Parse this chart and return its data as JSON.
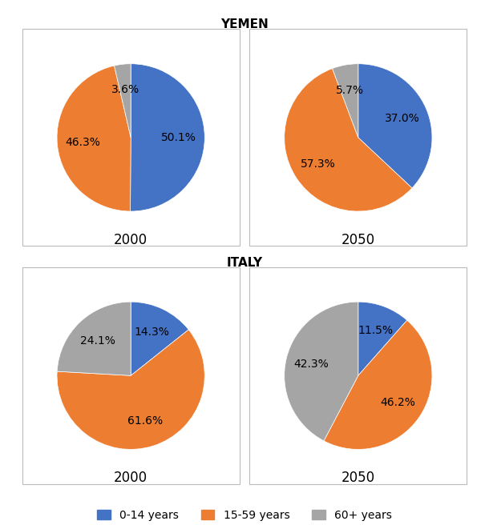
{
  "title_yemen": "YEMEN",
  "title_italy": "ITALY",
  "colors": {
    "0-14 years": "#4472C4",
    "15-59 years": "#ED7D31",
    "60+ years": "#A5A5A5"
  },
  "yemen_2000": {
    "label": "2000",
    "values": [
      50.1,
      46.3,
      3.6
    ],
    "autopct_labels": [
      "50.1%",
      "46.3%",
      "3.6%"
    ],
    "startangle": 90,
    "counterclock": false,
    "order": [
      "0-14 years",
      "15-59 years",
      "60+ years"
    ]
  },
  "yemen_2050": {
    "label": "2050",
    "values": [
      37.0,
      57.3,
      5.7
    ],
    "autopct_labels": [
      "37.0%",
      "57.3%",
      "5.7%"
    ],
    "startangle": 90,
    "counterclock": false,
    "order": [
      "0-14 years",
      "15-59 years",
      "60+ years"
    ]
  },
  "italy_2000": {
    "label": "2000",
    "values": [
      14.3,
      61.6,
      24.1
    ],
    "autopct_labels": [
      "14.3%",
      "61.6%",
      "24.1%"
    ],
    "startangle": 90,
    "counterclock": false,
    "order": [
      "0-14 years",
      "15-59 years",
      "60+ years"
    ]
  },
  "italy_2050": {
    "label": "2050",
    "values": [
      11.5,
      46.2,
      42.3
    ],
    "autopct_labels": [
      "11.5%",
      "46.2%",
      "42.3%"
    ],
    "startangle": 90,
    "counterclock": false,
    "order": [
      "0-14 years",
      "15-59 years",
      "60+ years"
    ]
  },
  "legend_labels": [
    "0-14 years",
    "15-59 years",
    "60+ years"
  ],
  "year_fontsize": 12,
  "title_fontsize": 11,
  "label_fontsize": 10,
  "background_color": "#FFFFFF",
  "box_color": "#BBBBBB"
}
